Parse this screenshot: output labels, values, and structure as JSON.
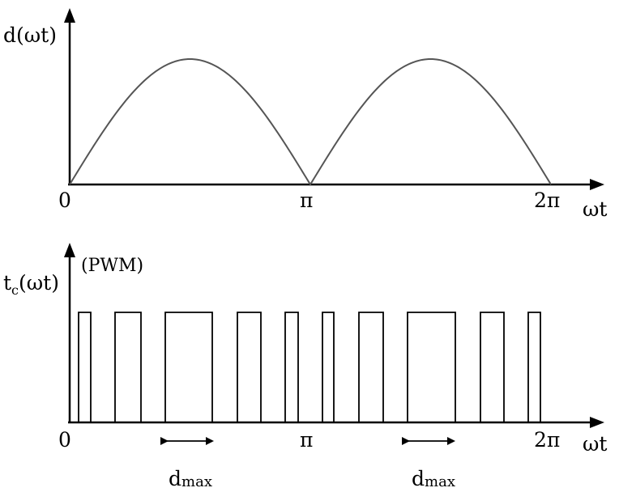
{
  "top_plot": {
    "y_label": "d(ωt)",
    "x_label": "ωt",
    "ticks": [
      "0",
      "π",
      "2π"
    ]
  },
  "bottom_plot": {
    "y_label_main": "t",
    "y_label_sub": "c",
    "y_label_tail": "(ωt)",
    "annotation": "(PWM)",
    "x_label": "ωt",
    "ticks": [
      "0",
      "π",
      "2π"
    ],
    "dmax_main": "d",
    "dmax_sub": "max"
  }
}
